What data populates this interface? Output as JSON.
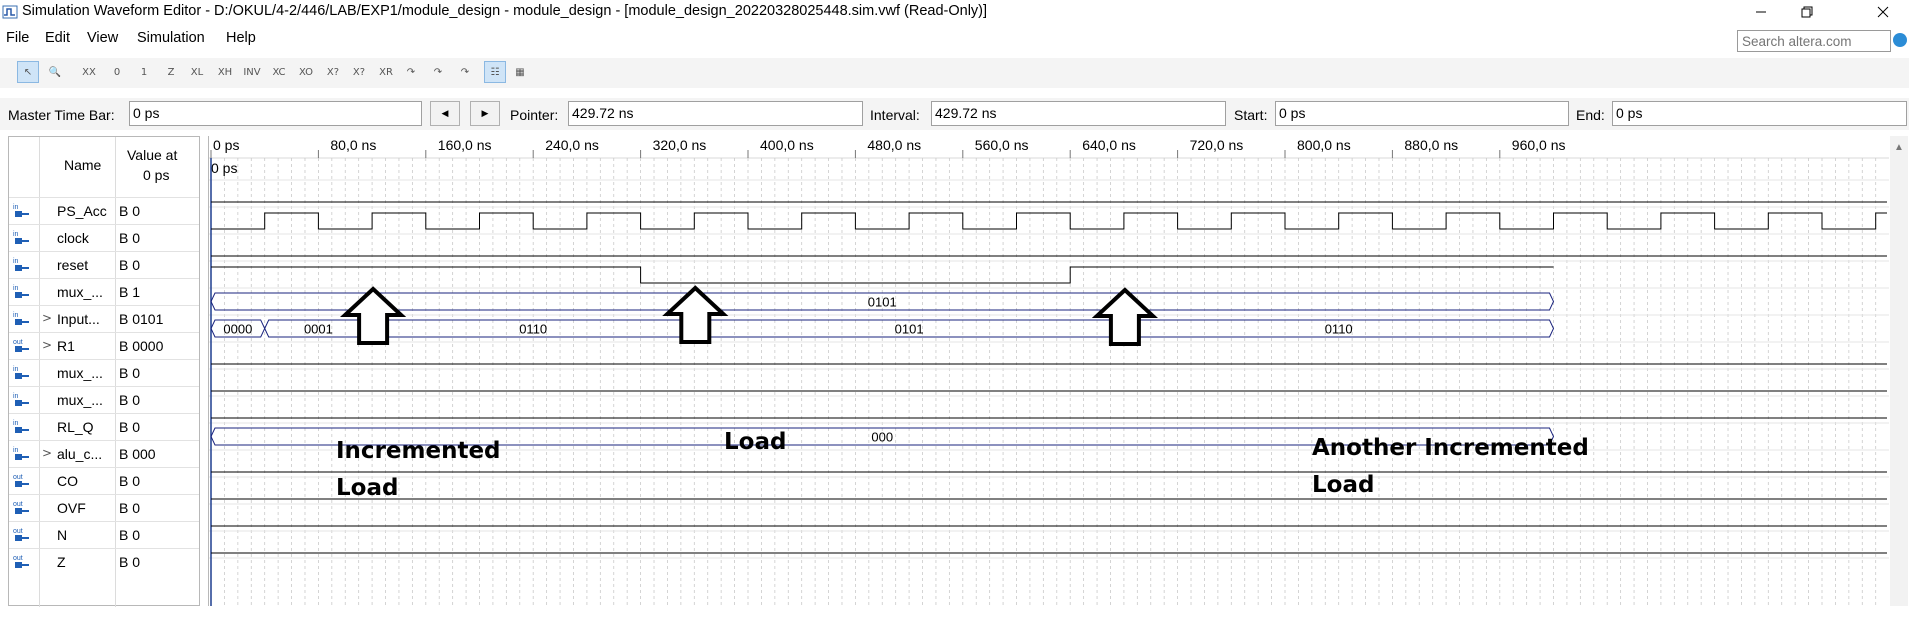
{
  "window": {
    "title": "Simulation Waveform Editor - D:/OKUL/4-2/446/LAB/EXP1/module_design - module_design - [module_design_20220328025448.sim.vwf (Read-Only)]",
    "controls": [
      "minimize",
      "restore",
      "close"
    ]
  },
  "menu": [
    "File",
    "Edit",
    "View",
    "Simulation",
    "Help"
  ],
  "search": {
    "placeholder": "Search altera.com"
  },
  "toolbar": {
    "tools": [
      {
        "name": "selection-tool",
        "glyph": "↖",
        "active": true
      },
      {
        "name": "zoom-tool",
        "glyph": "🔍",
        "active": false
      },
      {
        "name": "forcing-unknown",
        "glyph": "XX"
      },
      {
        "name": "forcing-low",
        "glyph": "0"
      },
      {
        "name": "forcing-high",
        "glyph": "1"
      },
      {
        "name": "high-impedance",
        "glyph": "Z"
      },
      {
        "name": "weak-low",
        "glyph": "XL"
      },
      {
        "name": "weak-high",
        "glyph": "XH"
      },
      {
        "name": "invert",
        "glyph": "INV"
      },
      {
        "name": "count-value",
        "glyph": "XC"
      },
      {
        "name": "clock-value",
        "glyph": "XO"
      },
      {
        "name": "arbitrary-value",
        "glyph": "X?"
      },
      {
        "name": "random-value",
        "glyph": "X?"
      },
      {
        "name": "random-r",
        "glyph": "XR"
      },
      {
        "name": "snap-1",
        "glyph": "↷"
      },
      {
        "name": "snap-2",
        "glyph": "↷"
      },
      {
        "name": "snap-3",
        "glyph": "↷"
      },
      {
        "name": "grid-toggle",
        "glyph": "☷",
        "active": true
      },
      {
        "name": "group-tool",
        "glyph": "▦"
      }
    ]
  },
  "timebar": {
    "master_label": "Master Time Bar:",
    "master_value": "0 ps",
    "pointer_label": "Pointer:",
    "pointer_value": "429.72 ns",
    "interval_label": "Interval:",
    "interval_value": "429.72 ns",
    "start_label": "Start:",
    "start_value": "0 ps",
    "end_label": "End:",
    "end_value": "0 ps"
  },
  "columns": {
    "name": "Name",
    "value_line1": "Value at",
    "value_line2": "0 ps"
  },
  "time_axis": {
    "ticks": [
      "0 ps",
      "80,0 ns",
      "160,0 ns",
      "240,0 ns",
      "320,0 ns",
      "400,0 ns",
      "480,0 ns",
      "560,0 ns",
      "640,0 ns",
      "720,0 ns",
      "800,0 ns",
      "880,0 ns",
      "960,0 ns"
    ],
    "cursor_label": "0 ps"
  },
  "signals": [
    {
      "dir": "in",
      "name": "PS_Acc",
      "value": "B 0",
      "bus": false
    },
    {
      "dir": "in",
      "name": "clock",
      "value": "B 0",
      "bus": false
    },
    {
      "dir": "in",
      "name": "reset",
      "value": "B 0",
      "bus": false
    },
    {
      "dir": "in",
      "name": "mux_...",
      "value": "B 1",
      "bus": false
    },
    {
      "dir": "in",
      "name": "Input...",
      "value": "B 0101",
      "bus": true
    },
    {
      "dir": "out",
      "name": "R1",
      "value": "B 0000",
      "bus": true
    },
    {
      "dir": "in",
      "name": "mux_...",
      "value": "B 0",
      "bus": false
    },
    {
      "dir": "in",
      "name": "mux_...",
      "value": "B 0",
      "bus": false
    },
    {
      "dir": "in",
      "name": "RL_Q",
      "value": "B 0",
      "bus": false
    },
    {
      "dir": "in",
      "name": "alu_c...",
      "value": "B 000",
      "bus": true
    },
    {
      "dir": "out",
      "name": "CO",
      "value": "B 0",
      "bus": false
    },
    {
      "dir": "out",
      "name": "OVF",
      "value": "B 0",
      "bus": false
    },
    {
      "dir": "out",
      "name": "N",
      "value": "B 0",
      "bus": false
    },
    {
      "dir": "out",
      "name": "Z",
      "value": "B 0",
      "bus": false
    }
  ],
  "waveforms": {
    "clock_period_ns": 80,
    "clock_first_rise_ns": 40,
    "mux_sel": [
      {
        "t0": 0,
        "t1": 320,
        "v": 1
      },
      {
        "t0": 320,
        "t1": 640,
        "v": 0
      },
      {
        "t0": 640,
        "t1": 1000,
        "v": 1
      }
    ],
    "input_bus": [
      {
        "t0": 0,
        "t1": 1000,
        "label": "0101"
      }
    ],
    "r1_bus": [
      {
        "t0": 0,
        "t1": 40,
        "label": "0000"
      },
      {
        "t0": 40,
        "t1": 120,
        "label": "0001"
      },
      {
        "t0": 120,
        "t1": 360,
        "label": "0110"
      },
      {
        "t0": 360,
        "t1": 680,
        "label": "0101"
      },
      {
        "t0": 680,
        "t1": 1000,
        "label": "0110"
      }
    ],
    "alu_bus": [
      {
        "t0": 0,
        "t1": 1000,
        "label": "000"
      }
    ]
  },
  "annotations": [
    {
      "id": "incremented",
      "lines": [
        "Incremented",
        "Load"
      ]
    },
    {
      "id": "load",
      "lines": [
        "Load"
      ]
    },
    {
      "id": "another",
      "lines": [
        "Another Incremented",
        "Load"
      ]
    }
  ]
}
